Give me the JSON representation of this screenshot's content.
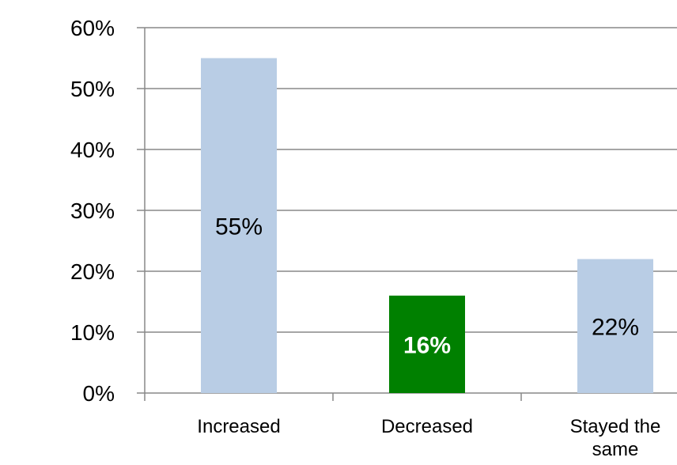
{
  "chart_data": {
    "type": "bar",
    "categories": [
      [
        "Increased"
      ],
      [
        "Decreased"
      ],
      [
        "Stayed the",
        "same"
      ]
    ],
    "values": [
      55,
      16,
      22
    ],
    "value_labels": [
      "55%",
      "16%",
      "22%"
    ],
    "bar_colors": [
      "#B9CDE5",
      "#008000",
      "#B9CDE5"
    ],
    "label_bold": [
      false,
      true,
      false
    ],
    "ylim": [
      0,
      60
    ],
    "yticks": [
      0,
      10,
      20,
      30,
      40,
      50,
      60
    ],
    "ytick_labels": [
      "0%",
      "10%",
      "20%",
      "30%",
      "40%",
      "50%",
      "60%"
    ],
    "grid": true,
    "grid_color": "#888888",
    "title": "",
    "xlabel": "",
    "ylabel": ""
  }
}
